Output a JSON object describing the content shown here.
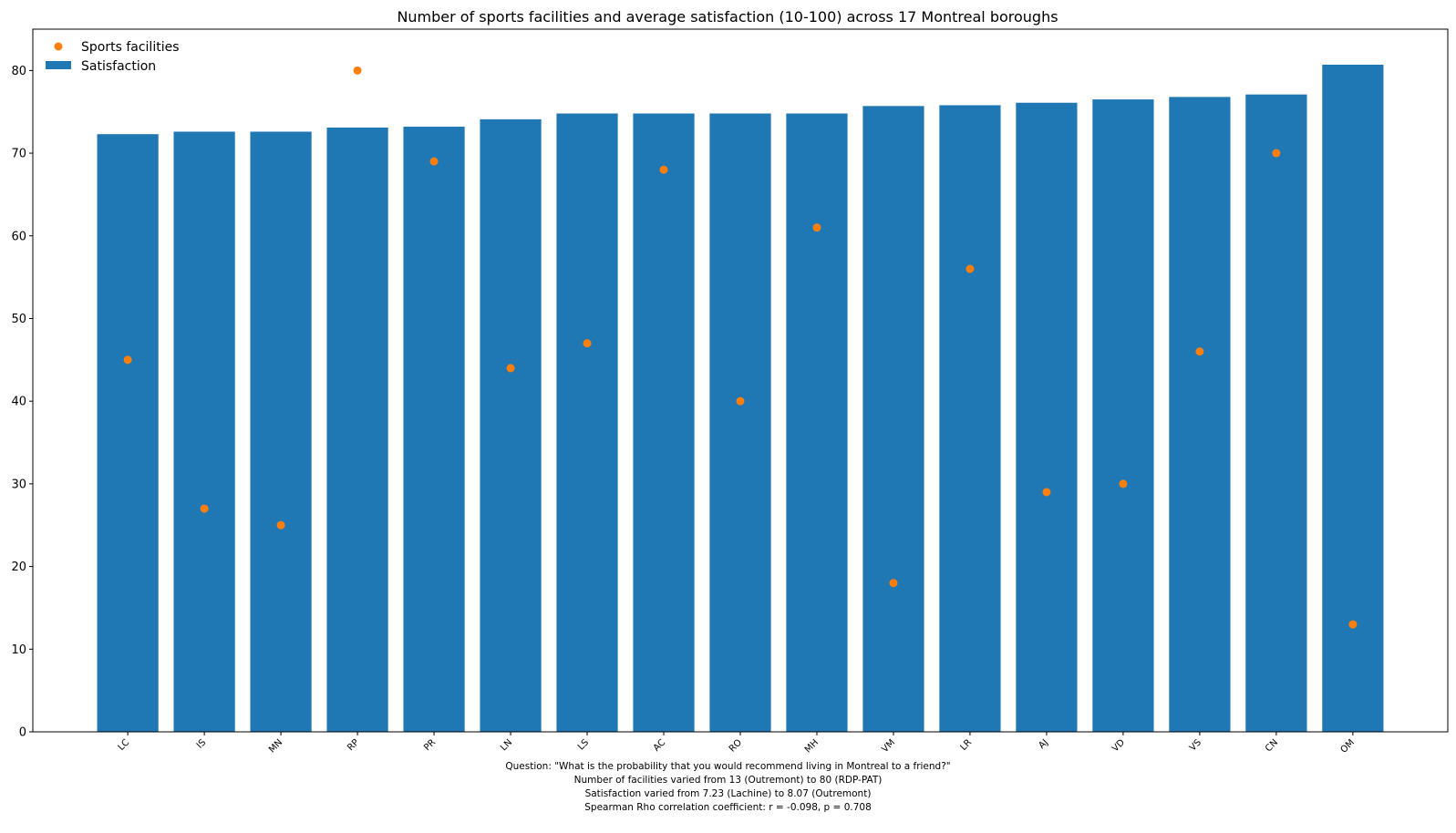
{
  "chart_data": {
    "type": "bar",
    "title": "Number of sports facilities and average satisfaction (10-100) across 17 Montreal boroughs",
    "xlabel": "",
    "ylabel": "",
    "ylim": [
      0,
      85
    ],
    "yticks": [
      0,
      10,
      20,
      30,
      40,
      50,
      60,
      70,
      80
    ],
    "grid": false,
    "legend_position": "top-left",
    "categories": [
      "LC",
      "IS",
      "MN",
      "RP",
      "PR",
      "LN",
      "LS",
      "AC",
      "RO",
      "MH",
      "VM",
      "LR",
      "AJ",
      "VD",
      "VS",
      "CN",
      "OM"
    ],
    "series": [
      {
        "name": "Satisfaction",
        "kind": "bar",
        "color": "#1f77b4",
        "values": [
          72.3,
          72.6,
          72.6,
          73.1,
          73.2,
          74.1,
          74.8,
          74.8,
          74.8,
          74.8,
          75.7,
          75.8,
          76.1,
          76.5,
          76.8,
          77.1,
          80.7
        ]
      },
      {
        "name": "Sports facilities",
        "kind": "scatter",
        "color": "#ff7f0e",
        "values": [
          45,
          27,
          25,
          80,
          69,
          44,
          47,
          68,
          40,
          61,
          18,
          56,
          29,
          30,
          46,
          70,
          13
        ]
      }
    ],
    "caption": [
      "Question: \"What is the probability that you would recommend living in Montreal to a friend?\"",
      "Number of facilities varied from 13 (Outremont) to 80 (RDP-PAT)",
      "Satisfaction varied from 7.23 (Lachine) to 8.07 (Outremont)",
      "Spearman Rho correlation coefficient: r = -0.098, p = 0.708"
    ]
  }
}
